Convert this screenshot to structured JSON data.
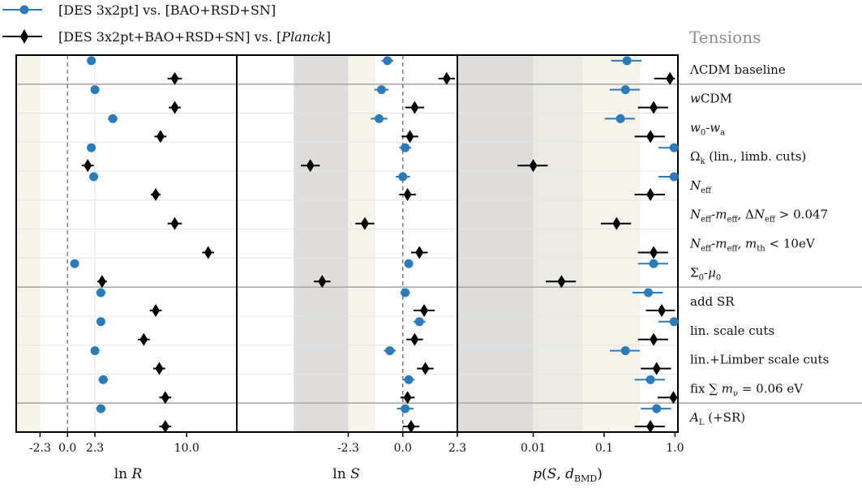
{
  "chart_data": {
    "type": "scatter",
    "title": "Tensions",
    "colors": {
      "blue": "#2b7bba",
      "black": "#000000"
    },
    "series": [
      {
        "name": "[DES 3x2pt] vs. [BAO+RSD+SN]",
        "color": "#2b7bba",
        "marker": "circle"
      },
      {
        "name": "[DES 3x2pt+BAO+RSD+SN] vs. [Planck]",
        "color": "#000000",
        "marker": "diamond"
      }
    ],
    "rows": [
      "ΛCDM baseline",
      "wCDM",
      "w0-wa",
      "Ωk (lin., limb. cuts)",
      "Neff",
      "Neff-meff, ΔNeff > 0.047",
      "Neff-meff, mth < 10eV",
      "Σ0-μ0",
      "add SR",
      "lin. scale cuts",
      "lin.+Limber scale cuts",
      "fix Σ mν = 0.06 eV",
      "AL (+SR)"
    ],
    "panels": [
      {
        "xlabel": "ln R",
        "xlim": [
          -4.3,
          14.2
        ],
        "ticks": [
          "-2.3",
          "0.0",
          "2.3",
          "10.0"
        ],
        "tick_values": [
          -2.3,
          0.0,
          2.3,
          10.0
        ],
        "reference_line": 0.0,
        "values_series1": [
          2.0,
          2.3,
          3.8,
          2.0,
          2.2,
          null,
          null,
          0.6,
          2.8,
          2.8,
          2.3,
          3.0,
          2.8
        ],
        "errors_series1": [
          0.35,
          0.35,
          0.4,
          0.35,
          0.35,
          null,
          null,
          0.0,
          0.4,
          0.35,
          0.3,
          0.4,
          0.4
        ],
        "values_series2": [
          null,
          9.0,
          7.8,
          1.7,
          7.4,
          9.0,
          11.8,
          2.9,
          7.4,
          6.4,
          7.7,
          8.2,
          8.2
        ],
        "values_series2_baseline": 9.0,
        "errors_series2": [
          0.6,
          0.5,
          0.5,
          0.5,
          0.4,
          0.6,
          0.5,
          0.4,
          0.5,
          0.5,
          0.5,
          0.5,
          0.5
        ],
        "bands": [
          {
            "from": -4.3,
            "to": -2.3,
            "shade": "light"
          }
        ]
      },
      {
        "xlabel": "ln S",
        "xlim": [
          -7.0,
          2.3
        ],
        "ticks": [
          "-2.3",
          "0.0",
          "2.3"
        ],
        "tick_values": [
          -2.3,
          0.0,
          2.3
        ],
        "reference_line": 0.0,
        "values_series1": [
          -0.65,
          -0.9,
          -1.0,
          0.1,
          0.0,
          null,
          null,
          0.25,
          0.1,
          0.7,
          -0.55,
          0.25,
          0.1
        ],
        "errors_series1": [
          0.25,
          0.3,
          0.35,
          0.25,
          0.3,
          null,
          null,
          0.15,
          0.2,
          0.25,
          0.25,
          0.25,
          0.35
        ],
        "values_series2": [
          1.85,
          0.5,
          0.3,
          -3.9,
          0.2,
          -1.6,
          0.7,
          -3.4,
          0.9,
          0.5,
          0.95,
          0.2,
          0.35
        ],
        "errors_series2": [
          0.35,
          0.4,
          0.35,
          0.4,
          0.35,
          0.4,
          0.35,
          0.35,
          0.45,
          0.35,
          0.35,
          0.3,
          0.35
        ],
        "bands": [
          {
            "from": -4.6,
            "to": -2.3,
            "shade": "dark"
          },
          {
            "from": -2.3,
            "to": -1.15,
            "shade": "light"
          }
        ]
      },
      {
        "xlabel": "p(S, d_BMD)",
        "xscale": "log",
        "xlim": [
          0.00085,
          1.1
        ],
        "ticks": [
          "0.01",
          "0.1",
          "1.0"
        ],
        "tick_values": [
          0.01,
          0.1,
          1.0
        ],
        "values_series1": [
          0.21,
          0.2,
          0.17,
          0.97,
          0.97,
          null,
          null,
          0.5,
          0.42,
          0.97,
          0.2,
          0.45,
          0.55
        ],
        "values_series2": [
          0.85,
          0.5,
          0.45,
          0.01,
          0.45,
          0.15,
          0.5,
          0.025,
          0.65,
          0.5,
          0.55,
          0.95,
          0.45
        ],
        "bands": [
          {
            "from": 0.00085,
            "to": 0.01,
            "shade": "dark"
          },
          {
            "from": 0.01,
            "to": 0.05,
            "shade": "mid"
          },
          {
            "from": 0.05,
            "to": 0.32,
            "shade": "light"
          }
        ]
      }
    ]
  }
}
